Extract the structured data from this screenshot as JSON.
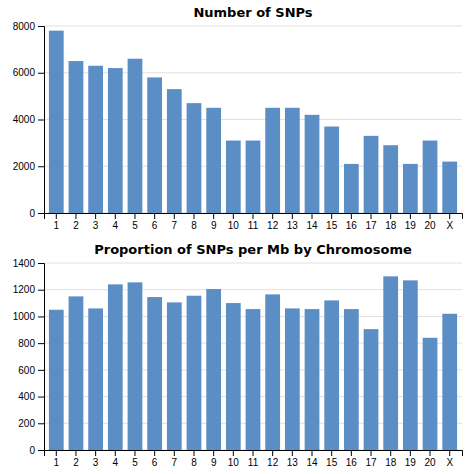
{
  "chart_data": [
    {
      "type": "bar",
      "title": "Number of SNPs",
      "categories": [
        "1",
        "2",
        "3",
        "4",
        "5",
        "6",
        "7",
        "8",
        "9",
        "10",
        "11",
        "12",
        "13",
        "14",
        "15",
        "16",
        "17",
        "18",
        "19",
        "20",
        "X"
      ],
      "values": [
        7800,
        6500,
        6300,
        6200,
        6600,
        5800,
        5300,
        4700,
        4500,
        3100,
        3100,
        4500,
        4500,
        4200,
        3700,
        2100,
        3300,
        2900,
        2100,
        3100,
        2200
      ],
      "color": "#5B8EC5",
      "ylim": [
        0,
        8000
      ],
      "yticks": [
        0,
        2000,
        4000,
        6000,
        8000
      ],
      "grid": true
    },
    {
      "type": "bar",
      "title": "Proportion of SNPs per Mb by Chromosome",
      "categories": [
        "1",
        "2",
        "3",
        "4",
        "5",
        "6",
        "7",
        "8",
        "9",
        "10",
        "11",
        "12",
        "13",
        "14",
        "15",
        "16",
        "17",
        "18",
        "19",
        "20",
        "X"
      ],
      "values": [
        1050,
        1150,
        1060,
        1240,
        1255,
        1145,
        1105,
        1155,
        1205,
        1100,
        1055,
        1165,
        1060,
        1055,
        1120,
        1055,
        905,
        1300,
        1270,
        840,
        1020
      ],
      "color": "#5B8EC5",
      "ylim": [
        0,
        1400
      ],
      "yticks": [
        0,
        200,
        400,
        600,
        800,
        1000,
        1200,
        1400
      ],
      "grid": true
    }
  ]
}
